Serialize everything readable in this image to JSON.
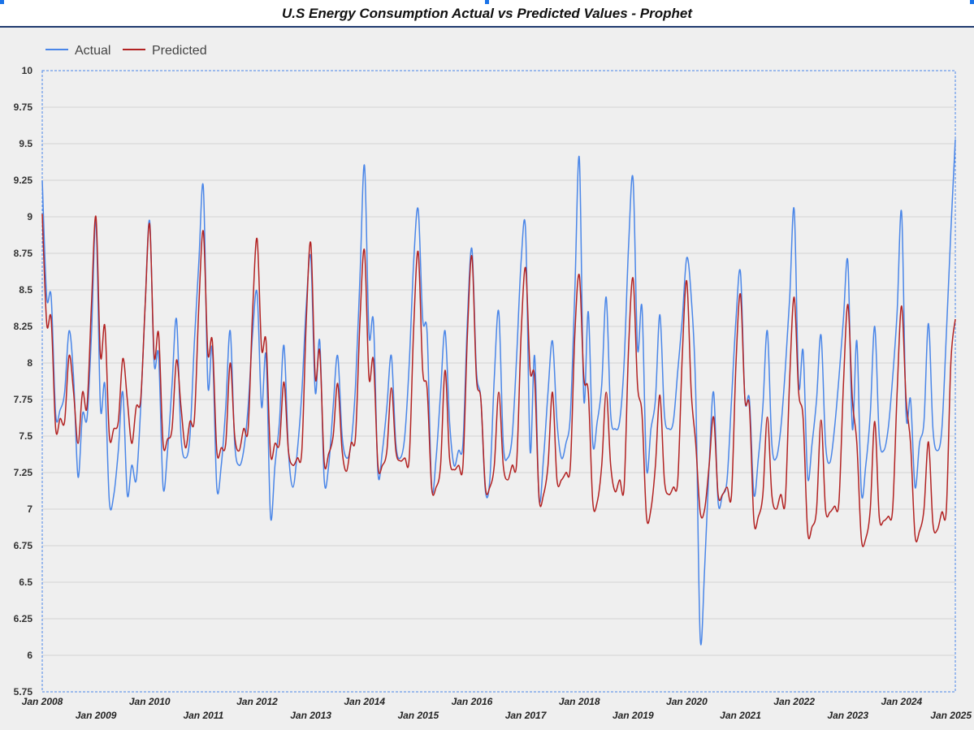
{
  "chart_data": {
    "type": "line",
    "title": "U.S Energy Consumption Actual vs Predicted Values - Prophet",
    "xlabel": "",
    "ylabel": "",
    "ylim": [
      5.75,
      10
    ],
    "yticks": [
      "10",
      "9.75",
      "9.5",
      "9.25",
      "9",
      "8.75",
      "8.5",
      "8.25",
      "8",
      "7.75",
      "7.5",
      "7.25",
      "7",
      "6.75",
      "6.5",
      "6.25",
      "6",
      "5.75"
    ],
    "xticks": [
      "Jan 2008",
      "Jan 2009",
      "Jan 2010",
      "Jan 2011",
      "Jan 2012",
      "Jan 2013",
      "Jan 2014",
      "Jan 2015",
      "Jan 2016",
      "Jan 2017",
      "Jan 2018",
      "Jan 2019",
      "Jan 2020",
      "Jan 2021",
      "Jan 2022",
      "Jan 2023",
      "Jan 2024",
      "Jan 2025"
    ],
    "grid": "horizontal",
    "legend_position": "top-left",
    "x_start": "2008-01",
    "x_end": "2025-01",
    "series": [
      {
        "name": "Actual",
        "color": "#4a86e8",
        "values": [
          [
            9.25,
            8.45,
            8.45,
            7.65,
            7.68,
            7.8,
            8.22,
            7.9,
            7.22,
            7.65,
            7.62,
            8.2
          ],
          [
            8.97,
            7.7,
            7.85,
            7.05,
            7.1,
            7.4,
            7.8,
            7.1,
            7.3,
            7.2,
            7.7,
            8.4
          ],
          [
            8.97,
            8.0,
            8.05,
            7.15,
            7.4,
            7.85,
            8.3,
            7.5,
            7.35,
            7.5,
            8.15,
            8.7
          ],
          [
            9.2,
            7.85,
            8.1,
            7.15,
            7.3,
            7.7,
            8.22,
            7.45,
            7.3,
            7.4,
            7.7,
            8.2
          ],
          [
            8.48,
            7.7,
            8.05,
            6.95,
            7.3,
            7.6,
            8.12,
            7.4,
            7.15,
            7.4,
            7.8,
            8.4
          ],
          [
            8.72,
            7.8,
            8.15,
            7.2,
            7.3,
            7.7,
            8.05,
            7.5,
            7.35,
            7.45,
            7.85,
            8.6
          ],
          [
            9.35,
            8.2,
            8.28,
            7.25,
            7.4,
            7.7,
            8.05,
            7.45,
            7.35,
            7.5,
            8.0,
            8.7
          ],
          [
            9.05,
            8.3,
            8.2,
            7.15,
            7.35,
            7.8,
            8.22,
            7.6,
            7.3,
            7.4,
            7.45,
            8.3
          ],
          [
            8.78,
            7.95,
            7.75,
            7.13,
            7.2,
            7.9,
            8.35,
            7.45,
            7.35,
            7.5,
            8.05,
            8.7
          ],
          [
            8.9,
            7.4,
            8.05,
            7.07,
            7.35,
            7.8,
            8.15,
            7.6,
            7.35,
            7.45,
            7.65,
            8.5
          ],
          [
            9.4,
            7.75,
            8.35,
            7.45,
            7.6,
            7.85,
            8.45,
            7.65,
            7.55,
            7.6,
            8.0,
            8.8
          ],
          [
            9.26,
            8.1,
            8.38,
            7.28,
            7.55,
            7.75,
            8.33,
            7.65,
            7.55,
            7.6,
            7.95,
            8.3
          ],
          [
            8.72,
            8.45,
            7.8,
            6.12,
            6.6,
            7.3,
            7.8,
            7.05,
            7.1,
            7.2,
            7.75,
            8.3
          ],
          [
            8.62,
            7.75,
            7.75,
            7.1,
            7.35,
            7.7,
            8.22,
            7.45,
            7.35,
            7.55,
            7.95,
            8.45
          ],
          [
            9.05,
            7.85,
            8.08,
            7.22,
            7.45,
            7.75,
            8.19,
            7.45,
            7.32,
            7.55,
            7.9,
            8.3
          ],
          [
            8.69,
            7.55,
            8.15,
            7.12,
            7.3,
            7.65,
            8.25,
            7.5,
            7.4,
            7.55,
            7.9,
            8.35
          ],
          [
            9.03,
            7.65,
            7.75,
            7.15,
            7.45,
            7.6,
            8.27,
            7.55,
            7.4,
            7.55,
            8.2,
            8.9
          ],
          [
            9.53
          ]
        ]
      },
      {
        "name": "Predicted",
        "color": "#b22222",
        "values": [
          [
            9.02,
            8.27,
            8.3,
            7.55,
            7.62,
            7.6,
            8.05,
            7.8,
            7.45,
            7.8,
            7.7,
            8.4
          ],
          [
            9.0,
            8.05,
            8.25,
            7.5,
            7.55,
            7.6,
            8.03,
            7.75,
            7.45,
            7.7,
            7.75,
            8.4
          ],
          [
            8.95,
            8.05,
            8.2,
            7.45,
            7.48,
            7.55,
            8.02,
            7.7,
            7.42,
            7.6,
            7.62,
            8.4
          ],
          [
            8.9,
            8.07,
            8.15,
            7.4,
            7.42,
            7.45,
            8.0,
            7.5,
            7.4,
            7.55,
            7.55,
            8.35
          ],
          [
            8.85,
            8.1,
            8.15,
            7.38,
            7.45,
            7.45,
            7.87,
            7.4,
            7.3,
            7.35,
            7.4,
            8.3
          ],
          [
            8.82,
            7.9,
            8.08,
            7.32,
            7.38,
            7.5,
            7.86,
            7.4,
            7.26,
            7.45,
            7.5,
            8.3
          ],
          [
            8.77,
            7.9,
            8.02,
            7.3,
            7.3,
            7.4,
            7.83,
            7.4,
            7.33,
            7.35,
            7.35,
            8.25
          ],
          [
            8.76,
            7.95,
            7.82,
            7.15,
            7.15,
            7.3,
            7.95,
            7.35,
            7.27,
            7.3,
            7.3,
            8.2
          ],
          [
            8.73,
            7.9,
            7.75,
            7.15,
            7.15,
            7.3,
            7.8,
            7.3,
            7.2,
            7.3,
            7.32,
            8.2
          ],
          [
            8.65,
            7.95,
            7.9,
            7.08,
            7.1,
            7.3,
            7.8,
            7.2,
            7.2,
            7.25,
            7.3,
            8.2
          ],
          [
            8.6,
            7.9,
            7.8,
            7.05,
            7.05,
            7.3,
            7.8,
            7.3,
            7.12,
            7.2,
            7.15,
            8.1
          ],
          [
            8.58,
            7.85,
            7.65,
            6.95,
            7.0,
            7.3,
            7.78,
            7.2,
            7.1,
            7.15,
            7.2,
            8.05
          ],
          [
            8.56,
            7.8,
            7.45,
            6.98,
            7.0,
            7.3,
            7.63,
            7.1,
            7.1,
            7.15,
            7.1,
            8.0
          ],
          [
            8.47,
            7.75,
            7.7,
            6.92,
            6.95,
            7.1,
            7.63,
            7.1,
            7.0,
            7.1,
            7.05,
            7.9
          ],
          [
            8.45,
            7.8,
            7.62,
            6.85,
            6.88,
            7.0,
            7.61,
            7.0,
            6.98,
            7.02,
            7.05,
            7.85
          ],
          [
            8.4,
            7.75,
            7.45,
            6.8,
            6.8,
            7.0,
            7.6,
            6.95,
            6.92,
            6.95,
            7.0,
            7.8
          ],
          [
            8.39,
            7.75,
            7.45,
            6.82,
            6.85,
            7.0,
            7.46,
            6.9,
            6.86,
            6.98,
            7.0,
            8.0
          ],
          [
            8.3
          ]
        ]
      }
    ]
  }
}
